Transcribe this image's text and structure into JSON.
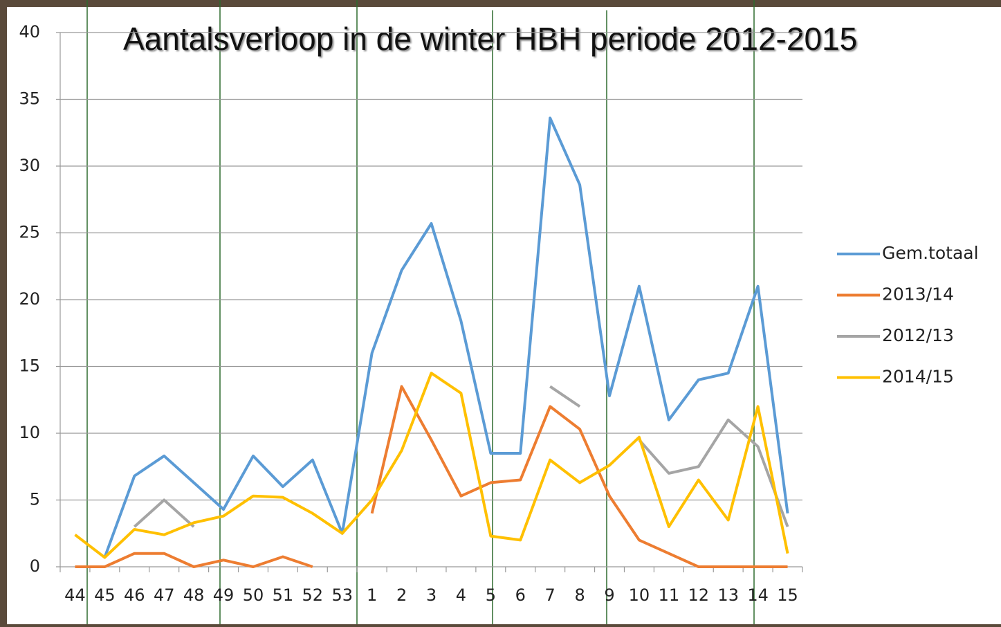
{
  "chart_data": {
    "type": "line",
    "title": "Aantalsverloop in de winter HBH periode 2012-2015",
    "categories": [
      "44",
      "45",
      "46",
      "47",
      "48",
      "49",
      "50",
      "51",
      "52",
      "53",
      "1",
      "2",
      "3",
      "4",
      "5",
      "6",
      "7",
      "8",
      "9",
      "10",
      "11",
      "12",
      "13",
      "14",
      "15"
    ],
    "series": [
      {
        "name": "Gem.totaal",
        "color": "#5b9bd5",
        "values": [
          null,
          0.7,
          6.8,
          8.3,
          6.3,
          4.3,
          8.3,
          6.0,
          8.0,
          2.5,
          16,
          22.2,
          25.7,
          18.4,
          8.5,
          8.5,
          33.6,
          28.6,
          12.8,
          21,
          11,
          14,
          14.5,
          21,
          4
        ]
      },
      {
        "name": "2013/14",
        "color": "#ed7d31",
        "values": [
          0,
          0,
          1,
          1,
          0,
          0.5,
          0,
          0.75,
          0,
          null,
          4,
          13.5,
          9.5,
          5.3,
          6.3,
          6.5,
          12,
          10.3,
          5.3,
          2,
          1,
          0,
          0,
          0,
          0
        ]
      },
      {
        "name": "2012/13",
        "color": "#a5a5a5",
        "values": [
          null,
          null,
          3,
          5,
          3,
          null,
          null,
          null,
          null,
          null,
          null,
          null,
          null,
          null,
          null,
          null,
          13.5,
          12,
          null,
          9.5,
          7,
          7.5,
          11,
          9,
          3
        ]
      },
      {
        "name": "2014/15",
        "color": "#ffc000",
        "values": [
          2.4,
          0.7,
          2.8,
          2.4,
          3.3,
          3.8,
          5.3,
          5.2,
          4,
          2.5,
          5,
          8.7,
          14.5,
          13,
          2.3,
          2,
          8,
          6.3,
          7.6,
          9.7,
          3,
          6.5,
          3.5,
          12,
          1
        ]
      }
    ],
    "ylim": [
      0,
      40
    ],
    "yticks": [
      0,
      5,
      10,
      15,
      20,
      25,
      30,
      35,
      40
    ],
    "grid": true,
    "legend": "right"
  }
}
